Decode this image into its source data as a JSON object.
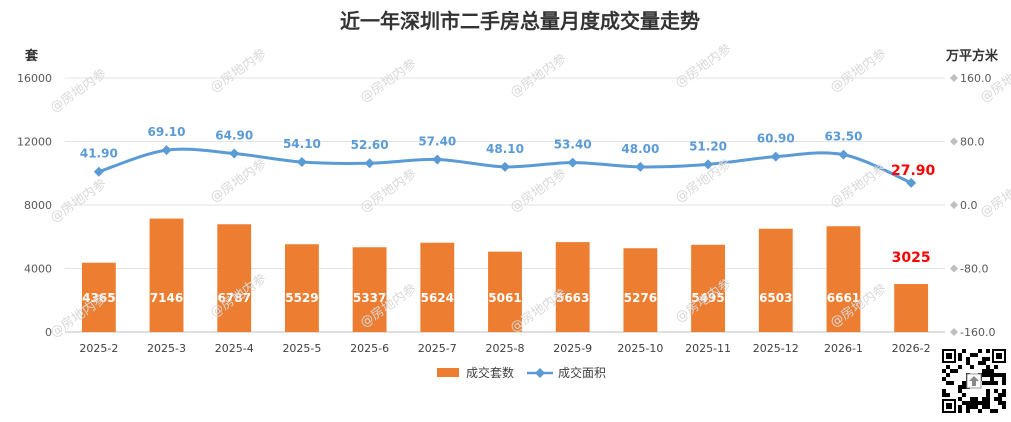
{
  "chart_data": {
    "type": "bar+line",
    "title": "近一年深圳市二手房总量月度成交量走势",
    "left_axis_unit": "套",
    "right_axis_unit": "万平方米",
    "left_ylim": [
      0,
      16000
    ],
    "left_ticks": [
      "0",
      "4000",
      "8000",
      "12000",
      "16000"
    ],
    "right_ylim": [
      -160,
      160
    ],
    "right_ticks": [
      "-160.0",
      "-80.0",
      "0.0",
      "80.0",
      "160.0"
    ],
    "categories": [
      "2025-2",
      "2025-3",
      "2025-4",
      "2025-5",
      "2025-6",
      "2025-7",
      "2025-8",
      "2025-9",
      "2025-10",
      "2025-11",
      "2025-12",
      "2026-1",
      "2026-2"
    ],
    "series": [
      {
        "name": "成交套数",
        "type": "bar",
        "axis": "left",
        "color": "#ED7D31",
        "values": [
          4365,
          7146,
          6787,
          5529,
          5337,
          5624,
          5061,
          5663,
          5276,
          5495,
          6503,
          6661,
          3025
        ],
        "labels": [
          "4365",
          "7146",
          "6787",
          "5529",
          "5337",
          "5624",
          "5061",
          "5663",
          "5276",
          "5495",
          "6503",
          "6661",
          "3025"
        ]
      },
      {
        "name": "成交面积",
        "type": "line",
        "axis": "right",
        "color": "#5B9BD5",
        "values": [
          41.9,
          69.1,
          64.9,
          54.1,
          52.6,
          57.4,
          48.1,
          53.4,
          48.0,
          51.2,
          60.9,
          63.5,
          27.9
        ],
        "labels": [
          "41.90",
          "69.10",
          "64.90",
          "54.10",
          "52.60",
          "57.40",
          "48.10",
          "53.40",
          "48.00",
          "51.20",
          "60.90",
          "63.50",
          "27.90"
        ]
      }
    ],
    "highlight_color": "#FF0000",
    "legend_position": "bottom",
    "grid": true
  },
  "watermark": "@房地内参"
}
